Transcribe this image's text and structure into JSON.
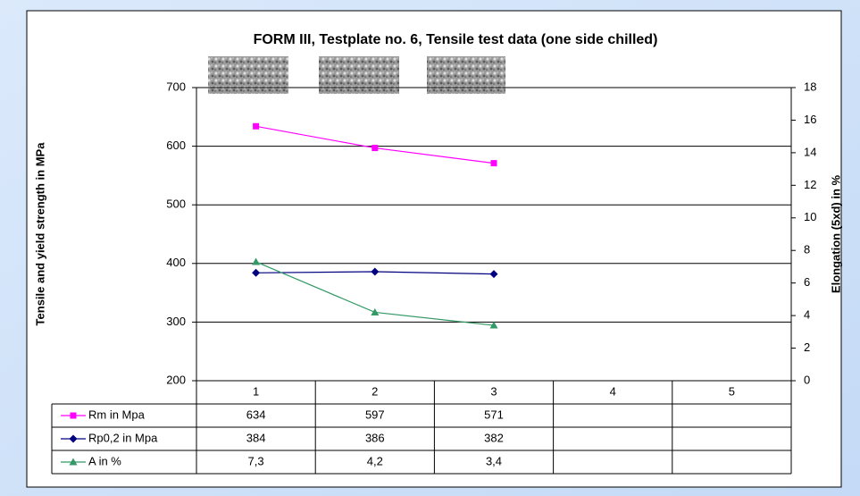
{
  "chart_data": {
    "type": "line",
    "title": "FORM III, Testplate no. 6, Tensile test data (one side chilled)",
    "y_label": "Tensile and yield strength in MPa",
    "y2_label": "Elongation (5xd) in %",
    "categories": [
      "1",
      "2",
      "3",
      "4",
      "5"
    ],
    "ylim": [
      200,
      700
    ],
    "yticks": [
      200,
      300,
      400,
      500,
      600,
      700
    ],
    "y2lim": [
      0,
      18
    ],
    "y2ticks": [
      0,
      2,
      4,
      6,
      8,
      10,
      12,
      14,
      16,
      18
    ],
    "grid": true,
    "series": [
      {
        "name": "Rm in Mpa",
        "color": "#ff00ff",
        "marker": "square",
        "values": [
          634,
          597,
          571,
          null,
          null
        ]
      },
      {
        "name": "Rp0,2 in Mpa",
        "color": "#000080",
        "marker": "diamond",
        "values": [
          384,
          386,
          382,
          null,
          null
        ]
      },
      {
        "name": "A in %",
        "color": "#339966",
        "marker": "triangle",
        "axis": "y2",
        "values": [
          7.3,
          4.2,
          3.4,
          null,
          null
        ],
        "value_labels": [
          "7,3",
          "4,2",
          "3,4",
          null,
          null
        ]
      }
    ]
  }
}
